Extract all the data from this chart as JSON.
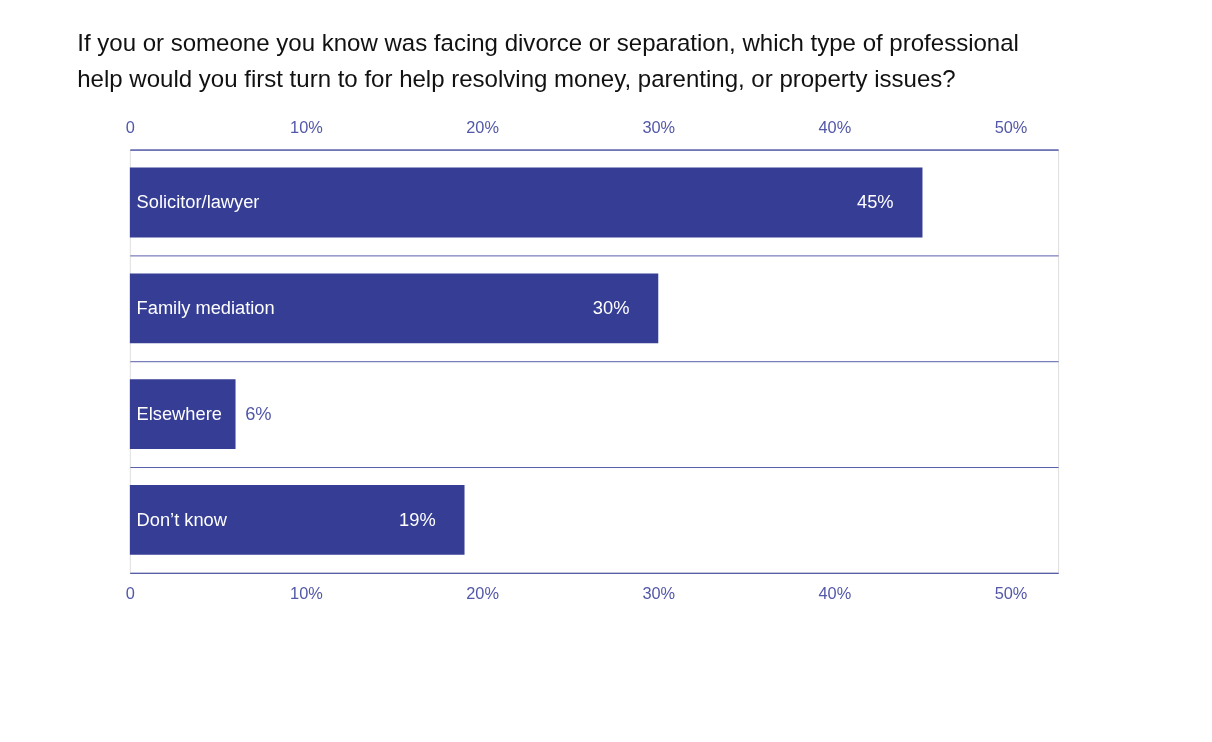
{
  "chart_data": {
    "type": "bar",
    "orientation": "horizontal",
    "title": [
      "If you or someone you know was facing divorce or separation, which type of professional",
      "help would you first turn to for help resolving money, parenting, or property issues?"
    ],
    "categories": [
      "Solicitor/lawyer",
      "Family mediation",
      "Elsewhere",
      "Don’t know"
    ],
    "values": [
      45,
      30,
      6,
      19
    ],
    "value_labels": [
      "45%",
      "30%",
      "6%",
      "19%"
    ],
    "color": "#353d95",
    "xlim": [
      0,
      52.7
    ],
    "xticks": [
      0,
      {
        "value": 10,
        "label": "10%"
      },
      {
        "value": 20,
        "label": "20%"
      },
      {
        "value": 30,
        "label": "30%"
      },
      {
        "value": 40,
        "label": "40%"
      },
      {
        "value": 50,
        "label": "50%"
      }
    ],
    "x2lim": [
      0,
      52.7
    ],
    "x2ticks": [
      0,
      {
        "value": 10,
        "label": "10%"
      },
      {
        "value": 20,
        "label": "20%"
      },
      {
        "value": 30,
        "label": "30%"
      },
      {
        "value": 40,
        "label": "40%"
      },
      {
        "value": 50,
        "label": "50%"
      }
    ],
    "grid": "y",
    "tick_labels": "x"
  }
}
